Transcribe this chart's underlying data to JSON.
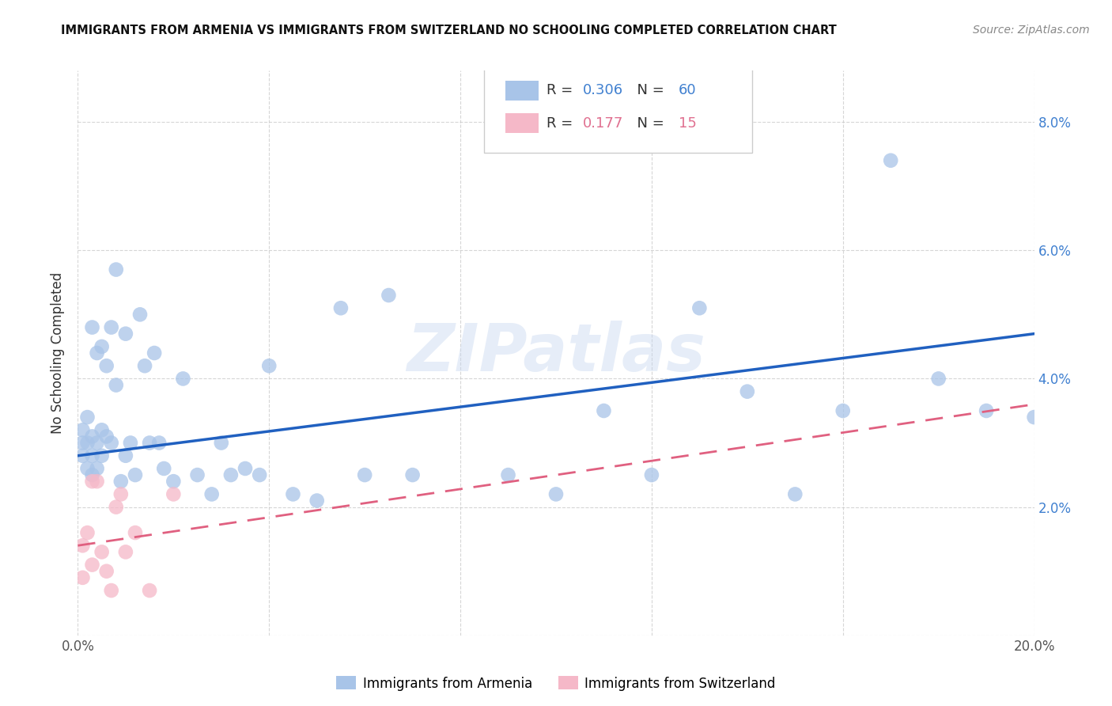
{
  "title": "IMMIGRANTS FROM ARMENIA VS IMMIGRANTS FROM SWITZERLAND NO SCHOOLING COMPLETED CORRELATION CHART",
  "source": "Source: ZipAtlas.com",
  "ylabel": "No Schooling Completed",
  "xlim": [
    0.0,
    0.2
  ],
  "ylim": [
    0.0,
    0.088
  ],
  "blue_R": 0.306,
  "blue_N": 60,
  "pink_R": 0.177,
  "pink_N": 15,
  "blue_color": "#a8c4e8",
  "pink_color": "#f5b8c8",
  "blue_line_color": "#2060c0",
  "pink_line_color": "#e06080",
  "blue_line_start_y": 0.028,
  "blue_line_end_y": 0.047,
  "pink_line_start_y": 0.014,
  "pink_line_end_y": 0.036,
  "blue_points_x": [
    0.001,
    0.001,
    0.001,
    0.002,
    0.002,
    0.002,
    0.003,
    0.003,
    0.003,
    0.003,
    0.004,
    0.004,
    0.004,
    0.005,
    0.005,
    0.005,
    0.006,
    0.006,
    0.007,
    0.007,
    0.008,
    0.008,
    0.009,
    0.01,
    0.01,
    0.011,
    0.012,
    0.013,
    0.014,
    0.015,
    0.016,
    0.017,
    0.018,
    0.02,
    0.022,
    0.025,
    0.028,
    0.03,
    0.032,
    0.035,
    0.038,
    0.04,
    0.045,
    0.05,
    0.055,
    0.06,
    0.065,
    0.07,
    0.09,
    0.1,
    0.11,
    0.12,
    0.13,
    0.14,
    0.15,
    0.16,
    0.17,
    0.18,
    0.19,
    0.2
  ],
  "blue_points_y": [
    0.028,
    0.03,
    0.032,
    0.026,
    0.03,
    0.034,
    0.025,
    0.028,
    0.031,
    0.048,
    0.026,
    0.03,
    0.044,
    0.028,
    0.032,
    0.045,
    0.031,
    0.042,
    0.03,
    0.048,
    0.039,
    0.057,
    0.024,
    0.028,
    0.047,
    0.03,
    0.025,
    0.05,
    0.042,
    0.03,
    0.044,
    0.03,
    0.026,
    0.024,
    0.04,
    0.025,
    0.022,
    0.03,
    0.025,
    0.026,
    0.025,
    0.042,
    0.022,
    0.021,
    0.051,
    0.025,
    0.053,
    0.025,
    0.025,
    0.022,
    0.035,
    0.025,
    0.051,
    0.038,
    0.022,
    0.035,
    0.074,
    0.04,
    0.035,
    0.034
  ],
  "pink_points_x": [
    0.001,
    0.001,
    0.002,
    0.003,
    0.003,
    0.004,
    0.005,
    0.006,
    0.007,
    0.008,
    0.009,
    0.01,
    0.012,
    0.015,
    0.02
  ],
  "pink_points_y": [
    0.014,
    0.009,
    0.016,
    0.011,
    0.024,
    0.024,
    0.013,
    0.01,
    0.007,
    0.02,
    0.022,
    0.013,
    0.016,
    0.007,
    0.022
  ],
  "watermark_text": "ZIPatlas",
  "figsize": [
    14.06,
    8.92
  ],
  "dpi": 100,
  "legend_text_color_blue": "#4080d0",
  "legend_text_color_pink": "#e07090",
  "legend_text_color_dark": "#333333"
}
